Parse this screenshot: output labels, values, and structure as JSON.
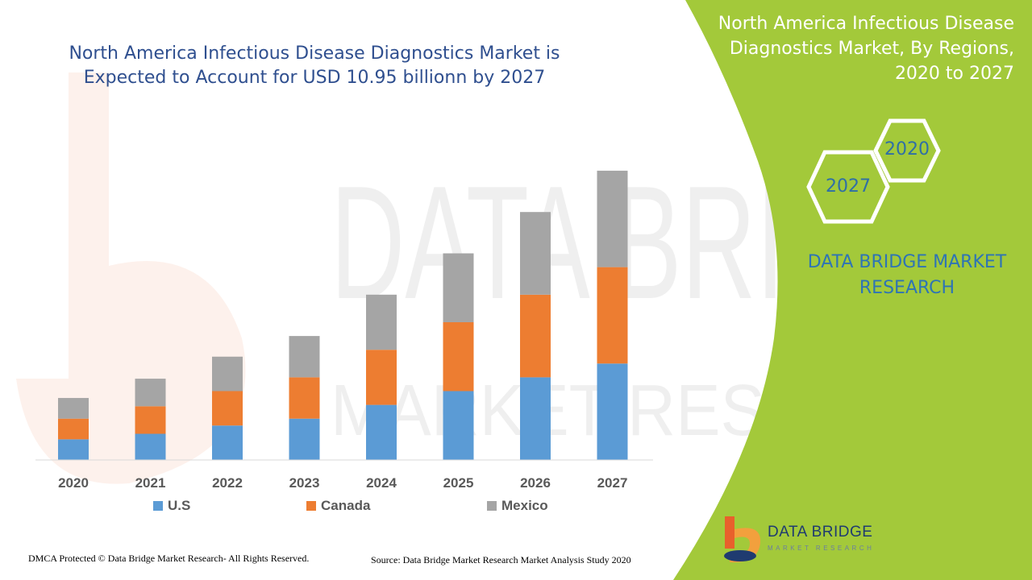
{
  "header": {
    "title": "North America Infectious Disease Diagnostics Market is Expected to Account for USD 10.95 billionn by 2027"
  },
  "side_panel": {
    "title": "North America Infectious Disease Diagnostics Market, By Regions, 2020 to 2027",
    "hex_labels": [
      "2020",
      "2027"
    ],
    "brand": "DATA BRIDGE MARKET RESEARCH",
    "panel_color": "#a3c93a"
  },
  "footer": {
    "dmca": "DMCA Protected © Data Bridge Market Research- All Rights Reserved.",
    "source": "Source: Data Bridge Market Research Market Analysis Study 2020"
  },
  "logo": {
    "name": "DATA BRIDGE",
    "tagline": "MARKET RESEARCH"
  },
  "chart_data": {
    "type": "bar",
    "stacked": true,
    "categories": [
      "2020",
      "2021",
      "2022",
      "2023",
      "2024",
      "2025",
      "2026",
      "2027"
    ],
    "series": [
      {
        "name": "U.S",
        "color": "#5b9bd5",
        "values": [
          1.5,
          1.9,
          2.5,
          3.0,
          4.0,
          5.0,
          6.0,
          7.0
        ]
      },
      {
        "name": "Canada",
        "color": "#ed7d31",
        "values": [
          1.5,
          2.0,
          2.5,
          3.0,
          4.0,
          5.0,
          6.0,
          7.0
        ]
      },
      {
        "name": "Mexico",
        "color": "#a5a5a5",
        "values": [
          1.5,
          2.0,
          2.5,
          3.0,
          4.0,
          5.0,
          6.0,
          7.0
        ]
      }
    ],
    "legend_position": "bottom",
    "grid": false
  }
}
